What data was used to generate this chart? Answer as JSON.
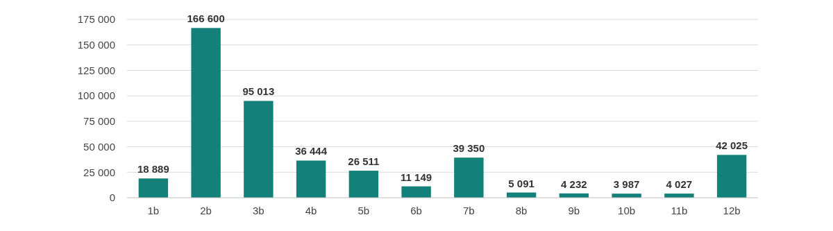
{
  "chart_data": {
    "type": "bar",
    "categories": [
      "1b",
      "2b",
      "3b",
      "4b",
      "5b",
      "6b",
      "7b",
      "8b",
      "9b",
      "10b",
      "11b",
      "12b"
    ],
    "values": [
      18889,
      166600,
      95013,
      36444,
      26511,
      11149,
      39350,
      5091,
      4232,
      3987,
      4027,
      42025
    ],
    "value_labels": [
      "18 889",
      "166 600",
      "95 013",
      "36 444",
      "26 511",
      "11 149",
      "39 350",
      "5 091",
      "4 232",
      "3 987",
      "4 027",
      "42 025"
    ],
    "color": "#138079",
    "ylim": [
      0,
      175000
    ],
    "yticks": [
      {
        "value": 0,
        "label": "0"
      },
      {
        "value": 25000,
        "label": "25 000"
      },
      {
        "value": 50000,
        "label": "50 000"
      },
      {
        "value": 75000,
        "label": "75 000"
      },
      {
        "value": 100000,
        "label": "100 000"
      },
      {
        "value": 125000,
        "label": "125 000"
      },
      {
        "value": 150000,
        "label": "150 000"
      },
      {
        "value": 175000,
        "label": "175 000"
      }
    ],
    "grid": "y"
  }
}
